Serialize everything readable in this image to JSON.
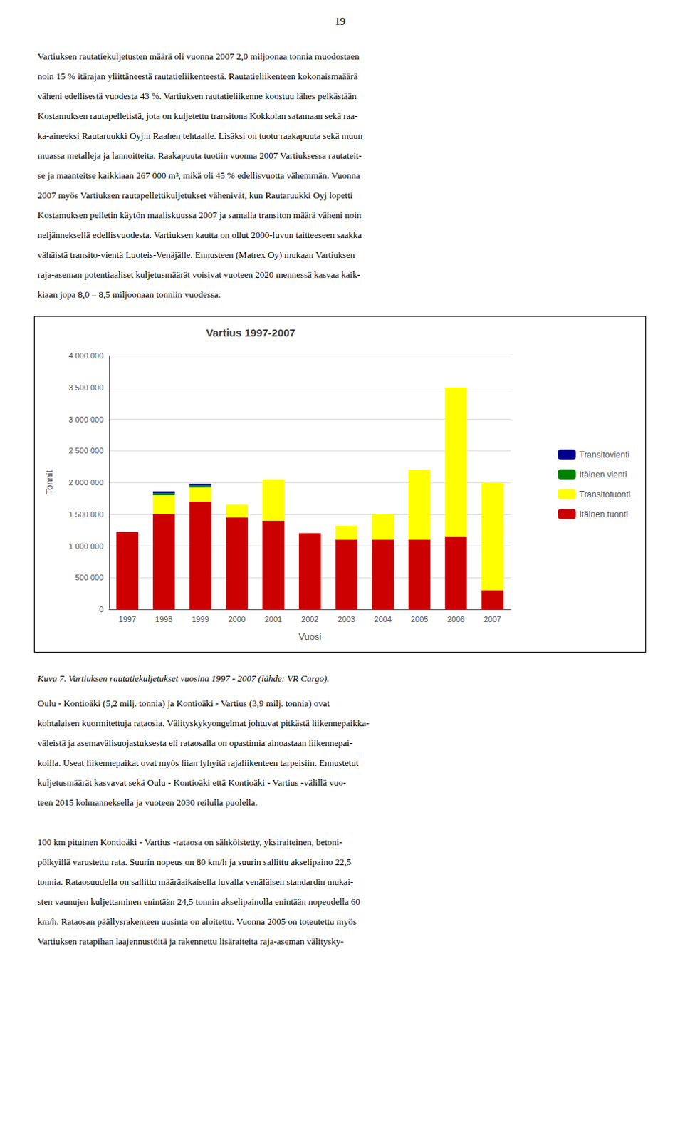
{
  "page_number": "19",
  "text_above": [
    "Vartiuksen rautatiekuljetusten määrä oli vuonna 2007 2,0 miljoonaa tonnia muodostaen",
    "noin 15 % itärajan yliittäneestä rautatieliikenteestä. Rautatieliikenteen kokonaismaäärä",
    "väheni edellisestä vuodesta 43 %. Vartiuksen rautatieliikenne koostuu lähes pelkästään",
    "Kostamuksen rautapelletistä, jota on kuljetettu transitona Kokkolan satamaan sekä raa-",
    "ka-aineeksi Rautaruukki Oyj:n Raahen tehtaalle. Lisäksi on tuotu raakapuuta sekä muun",
    "muassa metalleja ja lannoitteita. Raakapuuta tuotiin vuonna 2007 Vartiuksessa rautateit-",
    "se ja maanteitse kaikkiaan 267 000 m³, mikä oli 45 % edellisvuotta vähemmän. Vuonna",
    "2007 myös Vartiuksen rautapellettikuljetukset vähenivät, kun Rautaruukki Oyj lopetti",
    "Kostamuksen pelletin käytön maaliskuussa 2007 ja samalla transiton määrä väheni noin",
    "neljänneksellä edellisvuodesta. Vartiuksen kautta on ollut 2000-luvun taitteeseen saakka",
    "vähäistä transito-vientä Luoteis-Venäjälle. Ennusteen (Matrex Oy) mukaan Vartiuksen",
    "raja-aseman potentiaaliset kuljetusmäärät voisivat vuoteen 2020 mennessä kasvaa kaik-",
    "kiaan jopa 8,0 – 8,5 miljoonaan tonniin vuodessa."
  ],
  "caption": "Kuva 7. Vartiuksen rautatiekuljetukset vuosina 1997 - 2007 (lähde: VR Cargo).",
  "text_below": [
    [
      "Oulu - Kontioäki (5,2 milj. tonnia) ja Kontioäki - Vartius (3,9 milj. tonnia) ovat",
      "kohtalaisen kuormitettuja rataosia. Välityskykyongelmat johtuvat pitkästä liikennepaikka-",
      "väleistä ja asemavälisuojastuksesta eli rataosalla on opastimia ainoastaan liikennepai-",
      "koilla. Useat liikennepaikat ovat myös liian lyhyitä rajaliikenteen tarpeisiin. Ennustetut",
      "kuljetusmäärät kasvavat sekä Oulu - Kontioäki että Kontioäki - Vartius -välillä vuo-",
      "teen 2015 kolmanneksella ja vuoteen 2030 reilulla puolella."
    ],
    [
      "100 km pituinen Kontioäki - Vartius -rataosa on sähköistetty, yksiraiteinen, betoni-",
      "pölkyillä varustettu rata. Suurin nopeus on 80 km/h ja suurin sallittu akselipaino 22,5",
      "tonnia. Rataosuudella on sallittu määräaikaisella luvalla venäläisen standardin mukai-",
      "sten vaunujen kuljettaminen enintään 24,5 tonnin akselipainolla enintään nopeudella 60",
      "km/h. Rataosan päällysrakenteen uusinta on aloitettu. Vuonna 2005 on toteutettu myös",
      "Vartiuksen ratapihan laajennustöitä ja rakennettu lisäraiteita raja-aseman välitysky-"
    ]
  ],
  "chart_data": {
    "type": "bar",
    "title": "Vartius 1997-2007",
    "xlabel": "Vuosi",
    "ylabel": "Tonnit",
    "categories": [
      "1997",
      "1998",
      "1999",
      "2000",
      "2001",
      "2002",
      "2003",
      "2004",
      "2005",
      "2006",
      "2007"
    ],
    "stacked": true,
    "series": [
      {
        "name": "Itäinen tuonti",
        "color": "#CC0000",
        "values": [
          1220000,
          1500000,
          1700000,
          1450000,
          1400000,
          1200000,
          1100000,
          1100000,
          1100000,
          1150000,
          300000
        ]
      },
      {
        "name": "Transitotuonti",
        "color": "#FFFF00",
        "values": [
          0,
          300000,
          220000,
          200000,
          650000,
          0,
          220000,
          400000,
          1100000,
          2350000,
          1700000
        ]
      },
      {
        "name": "Itäinen vienti",
        "color": "#008000",
        "values": [
          0,
          30000,
          30000,
          0,
          0,
          0,
          0,
          0,
          0,
          0,
          0
        ]
      },
      {
        "name": "Transitovienti",
        "color": "#00008B",
        "values": [
          0,
          30000,
          30000,
          0,
          0,
          0,
          0,
          0,
          0,
          0,
          0
        ]
      }
    ],
    "ylim": [
      0,
      4000000
    ],
    "yticks": [
      0,
      {
        "value": 500000,
        "label": "500 000"
      },
      {
        "value": 1000000,
        "label": "1 000 000"
      },
      {
        "value": 1500000,
        "label": "1 500 000"
      },
      {
        "value": 2000000,
        "label": "2 000 000"
      },
      {
        "value": 2500000,
        "label": "2 500 000"
      },
      {
        "value": 3000000,
        "label": "3 000 000"
      },
      {
        "value": 3500000,
        "label": "3 500 000"
      },
      {
        "value": 4000000,
        "label": "4 000 000"
      }
    ],
    "grid": true,
    "legend": "right"
  }
}
